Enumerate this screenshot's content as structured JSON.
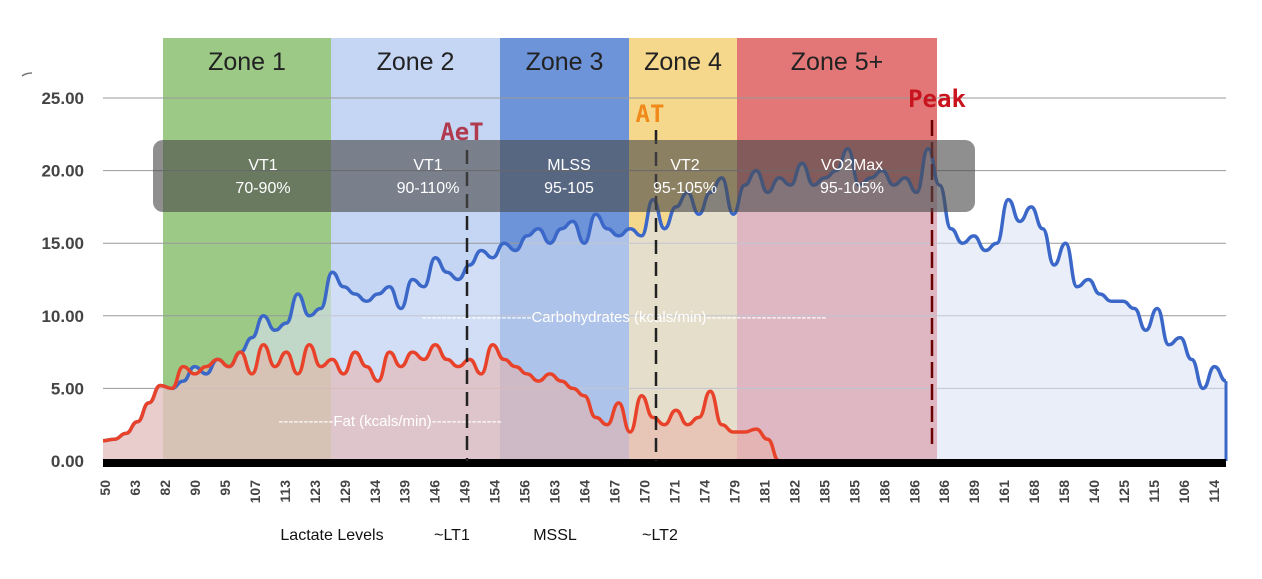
{
  "chart_data": {
    "type": "line",
    "ylim": [
      0,
      25
    ],
    "yticks": [
      "25.00",
      "20.00",
      "15.00",
      "10.00",
      "5.00",
      "0.00"
    ],
    "grid": true,
    "x_tick_labels": [
      "50",
      "63",
      "82",
      "90",
      "95",
      "107",
      "113",
      "123",
      "129",
      "134",
      "139",
      "146",
      "149",
      "154",
      "156",
      "163",
      "164",
      "167",
      "170",
      "171",
      "174",
      "179",
      "181",
      "182",
      "185",
      "185",
      "186",
      "186",
      "186",
      "189",
      "161",
      "168",
      "158",
      "140",
      "125",
      "115",
      "106",
      "114"
    ],
    "zones": [
      {
        "label": "Zone 1",
        "color": "#9cc986"
      },
      {
        "label": "Zone 2",
        "color": "#c4d6f4"
      },
      {
        "label": "Zone 3",
        "color": "#6d93d9"
      },
      {
        "label": "Zone 4",
        "color": "#f6d88c"
      },
      {
        "label": "Zone 5+",
        "color": "#e37777"
      }
    ],
    "ventilation_boxes": [
      {
        "title": "VT1",
        "range": "70-90%"
      },
      {
        "title": "VT1",
        "range": "90-110%"
      },
      {
        "title": "MLSS",
        "range": "95-105"
      },
      {
        "title": "VT2",
        "range": "95-105%"
      },
      {
        "title": "VO2Max",
        "range": "95-105%"
      }
    ],
    "thresholds": [
      {
        "label": "AeT",
        "color": "#b03a4e"
      },
      {
        "label": "AT",
        "color": "#f08a1a"
      },
      {
        "label": "Peak",
        "color": "#c8141e"
      }
    ],
    "series": [
      {
        "name": "Carbohydrates (kcals/min)",
        "color": "#3b68c8",
        "label_text": "----------------------Carbohydrates (kcals/min)------------------------",
        "values": [
          1.4,
          1.5,
          1.9,
          2.7,
          4.0,
          5.2,
          5.0,
          5.5,
          6.5,
          6.0,
          7.0,
          6.5,
          7.5,
          8.5,
          10.0,
          9.0,
          9.5,
          11.5,
          10.0,
          10.5,
          13.0,
          12.0,
          11.5,
          11.0,
          11.5,
          12.0,
          10.5,
          12.5,
          12.0,
          14.0,
          13.0,
          12.5,
          13.5,
          14.5,
          14.0,
          15.0,
          14.5,
          15.5,
          16.0,
          15.0,
          16.0,
          16.5,
          15.0,
          17.0,
          16.0,
          15.5,
          16.0,
          15.5,
          18.0,
          16.0,
          17.5,
          18.5,
          17.0,
          18.5,
          19.5,
          17.0,
          19.0,
          20.0,
          18.5,
          19.5,
          19.0,
          20.5,
          19.0,
          19.5,
          20.0,
          21.5,
          19.0,
          19.5,
          20.0,
          19.0,
          19.5,
          18.5,
          21.5,
          19.0,
          16.0,
          15.0,
          15.5,
          14.5,
          15.0,
          18.0,
          16.5,
          17.5,
          16.0,
          13.5,
          15.0,
          12.0,
          12.5,
          11.5,
          11.0,
          11.0,
          10.5,
          9.0,
          10.5,
          8.0,
          8.5,
          7.0,
          5.0,
          6.5,
          5.5
        ]
      },
      {
        "name": "Fat (kcals/min)",
        "color": "#e8432a",
        "label_text": "-----------Fat (kcals/min)--------------",
        "values": [
          1.4,
          1.5,
          1.9,
          2.7,
          4.0,
          5.2,
          5.0,
          6.5,
          6.0,
          6.5,
          7.0,
          6.5,
          7.5,
          6.0,
          8.0,
          6.5,
          7.5,
          6.0,
          8.0,
          6.5,
          7.0,
          6.0,
          7.5,
          6.5,
          5.5,
          7.5,
          6.5,
          7.5,
          7.0,
          8.0,
          7.0,
          6.5,
          7.0,
          6.0,
          8.0,
          7.0,
          6.5,
          6.0,
          5.5,
          6.0,
          5.5,
          5.0,
          4.5,
          3.0,
          2.5,
          4.0,
          2.0,
          4.5,
          3.0,
          2.5,
          3.5,
          2.5,
          3.0,
          4.8,
          2.5,
          2.0,
          2.0,
          2.2,
          1.5,
          0.0
        ]
      }
    ]
  },
  "bottom_labels": {
    "lactate": "Lactate Levels",
    "lt1": "~LT1",
    "mssl": "MSSL",
    "lt2": "~LT2"
  }
}
